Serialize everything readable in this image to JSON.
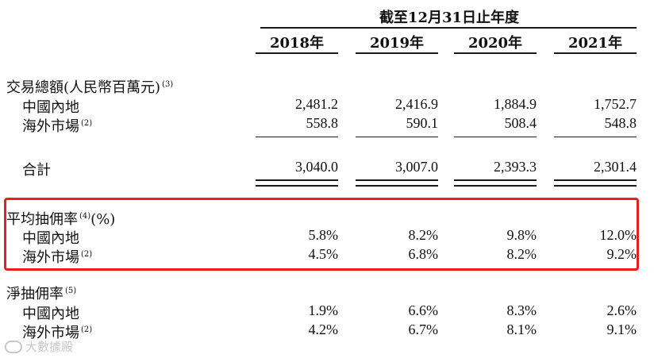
{
  "header": {
    "period": "截至12月31日止年度",
    "years": [
      "2018年",
      "2019年",
      "2020年",
      "2021年"
    ]
  },
  "gmv": {
    "label": "交易總額(人民幣百萬元)",
    "note": "(3)",
    "rows": [
      {
        "label": "中國內地",
        "note": "",
        "values": [
          "2,481.2",
          "2,416.9",
          "1,884.9",
          "1,752.7"
        ]
      },
      {
        "label": "海外市場",
        "note": "(2)",
        "values": [
          "558.8",
          "590.1",
          "508.4",
          "548.8"
        ]
      }
    ],
    "total": {
      "label": "合計",
      "values": [
        "3,040.0",
        "3,007.0",
        "2,393.3",
        "2,301.4"
      ]
    }
  },
  "avg_commission": {
    "label": "平均抽佣率",
    "note": "(4)",
    "unit": "(%)",
    "rows": [
      {
        "label": "中國內地",
        "note": "",
        "values": [
          "5.8%",
          "8.2%",
          "9.8%",
          "12.0%"
        ]
      },
      {
        "label": "海外市場",
        "note": "(2)",
        "values": [
          "4.5%",
          "6.8%",
          "8.2%",
          "9.2%"
        ]
      }
    ]
  },
  "net_commission": {
    "label": "淨抽佣率",
    "note": "(5)",
    "rows": [
      {
        "label": "中國內地",
        "note": "",
        "values": [
          "1.9%",
          "6.6%",
          "8.3%",
          "2.6%"
        ]
      },
      {
        "label": "海外市場",
        "note": "(2)",
        "values": [
          "4.2%",
          "6.7%",
          "8.1%",
          "9.1%"
        ]
      }
    ]
  },
  "watermark": {
    "text": "大數據殿",
    "icon": "logo-icon"
  },
  "colors": {
    "highlight": "#e8201c",
    "text": "#111111",
    "watermark": "#c9c9c9"
  }
}
